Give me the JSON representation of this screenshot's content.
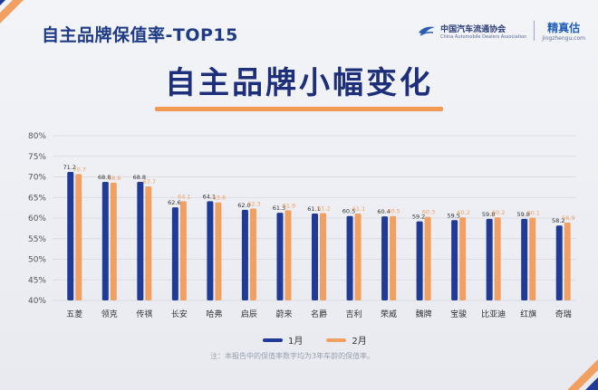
{
  "header": {
    "title": "自主品牌保值率-TOP15"
  },
  "logos": {
    "association_cn": "中国汽车流通协会",
    "association_en": "China Automobile Dealers Association",
    "jzg_cn": "精真估",
    "jzg_en": "jingzhengu.com"
  },
  "banner": {
    "text": "自主品牌小幅变化"
  },
  "footnote": "注：本报告中的保值率数字均为3年车龄的保值率。",
  "colors": {
    "series1": "#1f3b95",
    "series2": "#f2a062",
    "title": "#1f3b86"
  },
  "chart_data": {
    "type": "bar",
    "categories": [
      "五菱",
      "领克",
      "传祺",
      "长安",
      "哈弗",
      "启辰",
      "蔚来",
      "名爵",
      "吉利",
      "荣威",
      "魏牌",
      "宝骏",
      "比亚迪",
      "红旗",
      "奇瑞"
    ],
    "series": [
      {
        "name": "1月",
        "values": [
          71.2,
          68.8,
          68.8,
          62.6,
          64.1,
          62.0,
          61.3,
          61.1,
          60.5,
          60.4,
          59.2,
          59.5,
          59.8,
          59.8,
          58.2
        ]
      },
      {
        "name": "2月",
        "values": [
          70.7,
          68.6,
          67.7,
          64.1,
          63.8,
          62.3,
          61.9,
          61.2,
          61.1,
          60.5,
          60.3,
          60.2,
          60.2,
          60.1,
          58.9
        ]
      }
    ],
    "y_ticks": [
      "80%",
      "75%",
      "70%",
      "65%",
      "60%",
      "55%",
      "50%",
      "45%",
      "40%"
    ],
    "ylim": [
      40,
      80
    ],
    "legend_position": "bottom"
  }
}
